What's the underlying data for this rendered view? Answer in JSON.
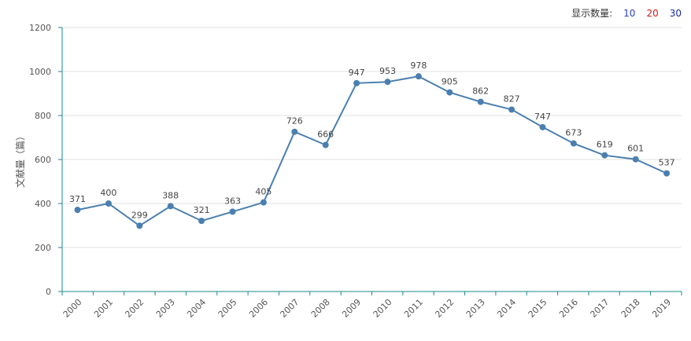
{
  "controls": {
    "label": "显示数量:",
    "options": [
      "10",
      "20",
      "30"
    ]
  },
  "colors": {
    "line": "#4a7fb0",
    "axis": "#1a8a8a",
    "grid": "#e0e0e0"
  },
  "chart_data": {
    "type": "line",
    "ylabel": "文献量（篇）",
    "ylim": [
      0,
      1200
    ],
    "yticks": [
      0,
      200,
      400,
      600,
      800,
      1000,
      1200
    ],
    "x": [
      "2000",
      "2001",
      "2002",
      "2003",
      "2004",
      "2005",
      "2006",
      "2007",
      "2008",
      "2009",
      "2010",
      "2011",
      "2012",
      "2013",
      "2014",
      "2015",
      "2016",
      "2017",
      "2018",
      "2019"
    ],
    "values": [
      371,
      400,
      299,
      388,
      321,
      363,
      405,
      726,
      666,
      947,
      953,
      978,
      905,
      862,
      827,
      747,
      673,
      619,
      601,
      537
    ],
    "grid": true
  }
}
